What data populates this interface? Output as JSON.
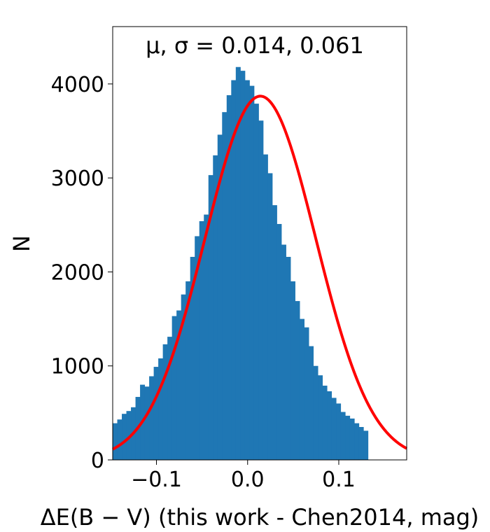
{
  "chart_data": {
    "type": "bar",
    "title": "μ, σ = 0.014,  0.061",
    "xlabel": "ΔE(B − V) (this work - Chen2014, mag)",
    "ylabel": "N",
    "xlim": [
      -0.148,
      0.1745
    ],
    "ylim": [
      0,
      4610
    ],
    "xticks": [
      -0.1,
      0.0,
      0.1
    ],
    "xtick_labels": [
      "−0.1",
      "0.0",
      "0.1"
    ],
    "yticks": [
      0,
      1000,
      2000,
      3000,
      4000
    ],
    "ytick_labels": [
      "0",
      "1000",
      "2000",
      "3000",
      "4000"
    ],
    "grid": false,
    "histogram": {
      "bin_start": -0.148,
      "bin_width": 0.005,
      "color": "#1f77b4",
      "counts": [
        390,
        430,
        490,
        520,
        560,
        670,
        800,
        780,
        890,
        990,
        1080,
        1230,
        1310,
        1530,
        1590,
        1760,
        1900,
        2160,
        2380,
        2540,
        2610,
        3030,
        3240,
        3460,
        3700,
        3880,
        4040,
        4180,
        4140,
        4040,
        3980,
        3790,
        3610,
        3250,
        3050,
        2710,
        2510,
        2290,
        2160,
        1900,
        1690,
        1500,
        1410,
        1210,
        1000,
        900,
        790,
        730,
        660,
        600,
        510,
        470,
        440,
        390,
        350,
        310
      ]
    },
    "fit_curve": {
      "type": "gaussian",
      "mu": 0.014,
      "sigma": 0.061,
      "peak": 3870,
      "color": "#ff0000"
    }
  }
}
